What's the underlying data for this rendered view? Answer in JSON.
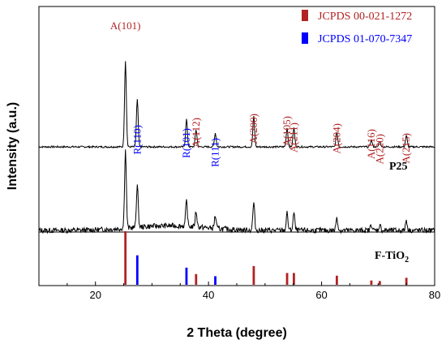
{
  "chart_data": {
    "type": "line",
    "xlabel": "2 Theta (degree)",
    "ylabel": "Intensity (a.u.)",
    "xlim": [
      10,
      80
    ],
    "x_ticks": [
      "20",
      "40",
      "60",
      "80"
    ],
    "x_tick_values": [
      20,
      40,
      60,
      80
    ],
    "y_ticks_labeled": false,
    "grid": false,
    "legend_position": "top-right",
    "legend": [
      {
        "label": "JCPDS 00-021-1272",
        "color": "#b22222"
      },
      {
        "label": "JCPDS 01-070-7347",
        "color": "#0000ff"
      }
    ],
    "samples": [
      {
        "name": "P25",
        "name_main": "P25",
        "name_sub": ""
      },
      {
        "name": "F-TiO2",
        "name_main": "F-TiO",
        "name_sub": "2"
      }
    ],
    "peak_labels": [
      {
        "text": "A(101)",
        "x": 25.3,
        "phase": "anatase"
      },
      {
        "text": "R(110)",
        "x": 27.4,
        "phase": "rutile"
      },
      {
        "text": "R(101)",
        "x": 36.1,
        "phase": "rutile"
      },
      {
        "text": "A(112)",
        "x": 37.8,
        "phase": "anatase"
      },
      {
        "text": "R(111)",
        "x": 41.2,
        "phase": "rutile"
      },
      {
        "text": "A(200)",
        "x": 48.0,
        "phase": "anatase"
      },
      {
        "text": "A(105)",
        "x": 53.9,
        "phase": "anatase"
      },
      {
        "text": "A(211)",
        "x": 55.1,
        "phase": "anatase"
      },
      {
        "text": "A(204)",
        "x": 62.7,
        "phase": "anatase"
      },
      {
        "text": "A(116)",
        "x": 68.8,
        "phase": "anatase"
      },
      {
        "text": "A(220)",
        "x": 70.3,
        "phase": "anatase"
      },
      {
        "text": "A(215)",
        "x": 75.0,
        "phase": "anatase"
      }
    ],
    "reference_lines": [
      {
        "x": 25.3,
        "rel_intensity": 1.0,
        "ref": "JCPDS 00-021-1272"
      },
      {
        "x": 37.8,
        "rel_intensity": 0.2,
        "ref": "JCPDS 00-021-1272"
      },
      {
        "x": 48.0,
        "rel_intensity": 0.35,
        "ref": "JCPDS 00-021-1272"
      },
      {
        "x": 53.9,
        "rel_intensity": 0.22,
        "ref": "JCPDS 00-021-1272"
      },
      {
        "x": 55.1,
        "rel_intensity": 0.22,
        "ref": "JCPDS 00-021-1272"
      },
      {
        "x": 62.7,
        "rel_intensity": 0.17,
        "ref": "JCPDS 00-021-1272"
      },
      {
        "x": 68.8,
        "rel_intensity": 0.08,
        "ref": "JCPDS 00-021-1272"
      },
      {
        "x": 70.3,
        "rel_intensity": 0.07,
        "ref": "JCPDS 00-021-1272"
      },
      {
        "x": 75.0,
        "rel_intensity": 0.13,
        "ref": "JCPDS 00-021-1272"
      },
      {
        "x": 27.4,
        "rel_intensity": 0.55,
        "ref": "JCPDS 01-070-7347"
      },
      {
        "x": 36.1,
        "rel_intensity": 0.32,
        "ref": "JCPDS 01-070-7347"
      },
      {
        "x": 41.2,
        "rel_intensity": 0.16,
        "ref": "JCPDS 01-070-7347"
      }
    ],
    "colors": {
      "anatase": "#b22222",
      "rutile": "#0000ff",
      "curve": "#000000"
    }
  }
}
